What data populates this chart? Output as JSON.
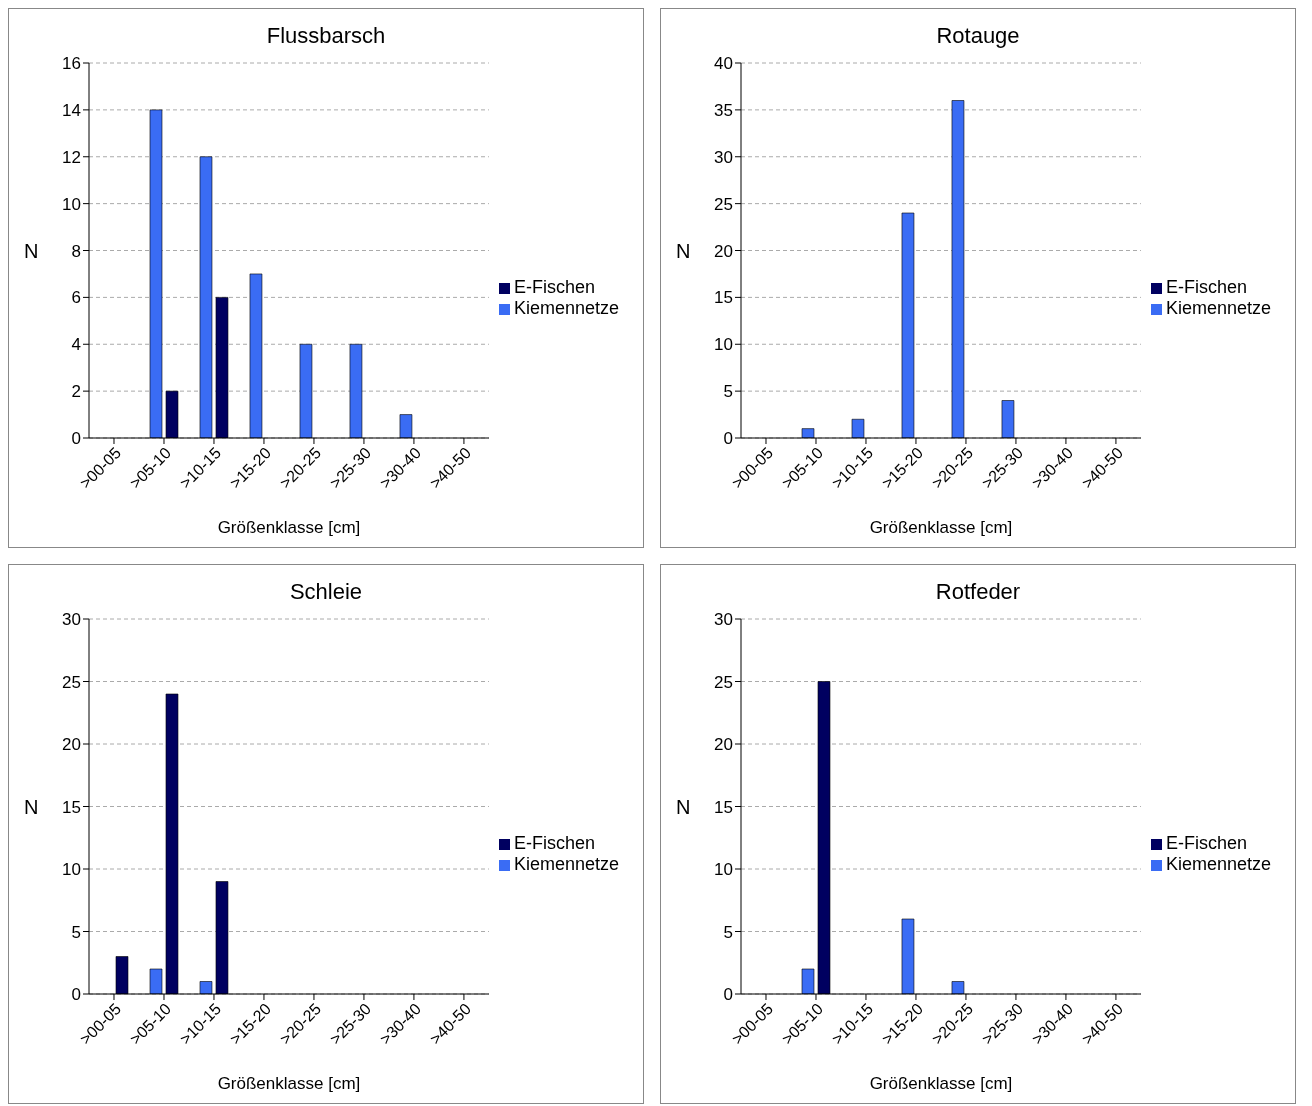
{
  "chart_data": [
    {
      "type": "bar",
      "title": "Flussbarsch",
      "xlabel": "Größenklasse [cm]",
      "ylabel": "N",
      "categories": [
        ">00-05",
        ">05-10",
        ">10-15",
        ">15-20",
        ">20-25",
        ">25-30",
        ">30-40",
        ">40-50"
      ],
      "series": [
        {
          "name": "Kiemennetze",
          "color": "#3a6cf4",
          "values": [
            0,
            14,
            12,
            7,
            4,
            4,
            1,
            0
          ]
        },
        {
          "name": "E-Fischen",
          "color": "#000060",
          "values": [
            0,
            2,
            6,
            0,
            0,
            0,
            0,
            0
          ]
        }
      ],
      "ylim": [
        0,
        16
      ],
      "yticks": [
        0,
        2,
        4,
        6,
        8,
        10,
        12,
        14,
        16
      ],
      "grid": "y",
      "legend": "right"
    },
    {
      "type": "bar",
      "title": "Rotauge",
      "xlabel": "Größenklasse [cm]",
      "ylabel": "N",
      "categories": [
        ">00-05",
        ">05-10",
        ">10-15",
        ">15-20",
        ">20-25",
        ">25-30",
        ">30-40",
        ">40-50"
      ],
      "series": [
        {
          "name": "Kiemennetze",
          "color": "#3a6cf4",
          "values": [
            0,
            1,
            2,
            24,
            36,
            4,
            0,
            0
          ]
        },
        {
          "name": "E-Fischen",
          "color": "#000060",
          "values": [
            0,
            0,
            0,
            0,
            0,
            0,
            0,
            0
          ]
        }
      ],
      "ylim": [
        0,
        40
      ],
      "yticks": [
        0,
        5,
        10,
        15,
        20,
        25,
        30,
        35,
        40
      ],
      "grid": "y",
      "legend": "right"
    },
    {
      "type": "bar",
      "title": "Schleie",
      "xlabel": "Größenklasse [cm]",
      "ylabel": "N",
      "categories": [
        ">00-05",
        ">05-10",
        ">10-15",
        ">15-20",
        ">20-25",
        ">25-30",
        ">30-40",
        ">40-50"
      ],
      "series": [
        {
          "name": "Kiemennetze",
          "color": "#3a6cf4",
          "values": [
            0,
            2,
            1,
            0,
            0,
            0,
            0,
            0
          ]
        },
        {
          "name": "E-Fischen",
          "color": "#000060",
          "values": [
            3,
            24,
            9,
            0,
            0,
            0,
            0,
            0
          ]
        }
      ],
      "ylim": [
        0,
        30
      ],
      "yticks": [
        0,
        5,
        10,
        15,
        20,
        25,
        30
      ],
      "grid": "y",
      "legend": "right"
    },
    {
      "type": "bar",
      "title": "Rotfeder",
      "xlabel": "Größenklasse [cm]",
      "ylabel": "N",
      "categories": [
        ">00-05",
        ">05-10",
        ">10-15",
        ">15-20",
        ">20-25",
        ">25-30",
        ">30-40",
        ">40-50"
      ],
      "series": [
        {
          "name": "Kiemennetze",
          "color": "#3a6cf4",
          "values": [
            0,
            2,
            0,
            6,
            1,
            0,
            0,
            0
          ]
        },
        {
          "name": "E-Fischen",
          "color": "#000060",
          "values": [
            0,
            25,
            0,
            0,
            0,
            0,
            0,
            0
          ]
        }
      ],
      "ylim": [
        0,
        30
      ],
      "yticks": [
        0,
        5,
        10,
        15,
        20,
        25,
        30
      ],
      "grid": "y",
      "legend": "right"
    }
  ]
}
